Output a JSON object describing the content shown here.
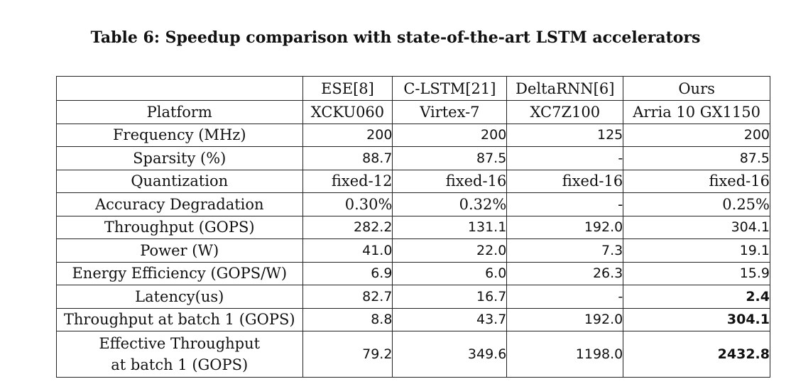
{
  "caption": "Table 6: Speedup comparison with state-of-the-art LSTM accelerators",
  "columns": [
    "ESE[8]",
    "C-LSTM[21]",
    "DeltaRNN[6]",
    "Ours"
  ],
  "rows": [
    {
      "label": "Platform",
      "cells": [
        "XCKU060",
        "Virtex-7",
        "XC7Z100",
        "Arria 10 GX1150"
      ]
    },
    {
      "label": "Frequency (MHz)",
      "cells": [
        "200",
        "200",
        "125",
        "200"
      ]
    },
    {
      "label": "Sparsity (%)",
      "cells": [
        "88.7",
        "87.5",
        "-",
        "87.5"
      ]
    },
    {
      "label": "Quantization",
      "cells": [
        "fixed-12",
        "fixed-16",
        "fixed-16",
        "fixed-16"
      ]
    },
    {
      "label": "Accuracy Degradation",
      "cells": [
        "0.30%",
        "0.32%",
        "-",
        "0.25%"
      ]
    },
    {
      "label": "Throughput (GOPS)",
      "cells": [
        "282.2",
        "131.1",
        "192.0",
        "304.1"
      ]
    },
    {
      "label": "Power (W)",
      "cells": [
        "41.0",
        "22.0",
        "7.3",
        "19.1"
      ]
    },
    {
      "label": "Energy Efficiency (GOPS/W)",
      "cells": [
        "6.9",
        "6.0",
        "26.3",
        "15.9"
      ]
    },
    {
      "label": "Latency(us)",
      "cells": [
        "82.7",
        "16.7",
        "-",
        "2.4"
      ]
    },
    {
      "label": "Throughput at batch 1 (GOPS)",
      "cells": [
        "8.8",
        "43.7",
        "192.0",
        "304.1"
      ]
    },
    {
      "label_line1": "Effective Throughput",
      "label_line2": "at batch 1 (GOPS)",
      "cells": [
        "79.2",
        "349.6",
        "1198.0",
        "2432.8"
      ]
    }
  ]
}
